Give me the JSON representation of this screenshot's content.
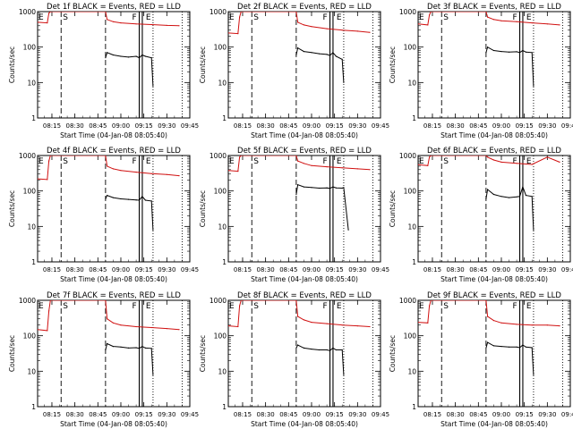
{
  "figure": {
    "colors": {
      "events": "#000000",
      "lld": "#d01010",
      "axes": "#000000",
      "background": "#ffffff"
    },
    "shared": {
      "title_suffix": "BLACK = Events, RED = LLD",
      "xlabel": "Start Time (04-Jan-08 08:05:40)",
      "ylabel": "Counts/sec",
      "xticks": [
        "08:15",
        "08:30",
        "08:45",
        "09:00",
        "09:15",
        "09:30",
        "09:45"
      ],
      "yticks": [
        "1",
        "10",
        "100",
        "1000"
      ],
      "marker_labels": [
        "E",
        "S",
        "F",
        "E"
      ]
    }
  },
  "chart_data": [
    {
      "type": "line",
      "title": "Det 1f BLACK = Events, RED = LLD",
      "xlabel": "Start Time (04-Jan-08 08:05:40)",
      "ylabel": "Counts/sec",
      "xlim": [
        "08:05:40",
        "09:45"
      ],
      "ylim": [
        1,
        1000
      ],
      "yscale": "log",
      "markers": {
        "E_start": "08:05:40",
        "S_dashed": "08:21",
        "dash_2": "08:50",
        "F_1": "09:12",
        "F_2": "09:14",
        "E_dotted": "09:21",
        "dotted_2": "09:40"
      },
      "series": [
        {
          "color": "red",
          "x": [
            "08:05:40",
            "08:12",
            "08:13",
            "08:14",
            "08:50",
            "08:51",
            "08:55",
            "09:00",
            "09:10",
            "09:20",
            "09:30",
            "09:38"
          ],
          "y": [
            500,
            480,
            900,
            1000,
            1000,
            600,
            520,
            480,
            450,
            430,
            410,
            400
          ]
        },
        {
          "color": "black",
          "x": [
            "08:50",
            "08:51",
            "08:55",
            "09:00",
            "09:05",
            "09:10",
            "09:12",
            "09:14",
            "09:16",
            "09:20",
            "09:21"
          ],
          "y": [
            50,
            70,
            60,
            55,
            52,
            55,
            50,
            60,
            55,
            50,
            8
          ]
        }
      ]
    },
    {
      "type": "line",
      "title": "Det 2f BLACK = Events, RED = LLD",
      "xlabel": "Start Time (04-Jan-08 08:05:40)",
      "ylabel": "Counts/sec",
      "xlim": [
        "08:05:40",
        "09:45"
      ],
      "ylim": [
        1,
        1000
      ],
      "yscale": "log",
      "markers": {
        "E_start": "08:05:40",
        "S_dashed": "08:21",
        "dash_2": "08:50",
        "F_1": "09:12",
        "F_2": "09:14",
        "E_dotted": "09:21",
        "dotted_2": "09:40"
      },
      "series": [
        {
          "color": "red",
          "x": [
            "08:05:40",
            "08:12",
            "08:13",
            "08:14",
            "08:50",
            "08:51",
            "08:55",
            "09:00",
            "09:10",
            "09:20",
            "09:30",
            "09:38"
          ],
          "y": [
            250,
            240,
            700,
            1000,
            1000,
            500,
            420,
            380,
            330,
            300,
            280,
            260
          ]
        },
        {
          "color": "black",
          "x": [
            "08:50",
            "08:51",
            "08:55",
            "09:00",
            "09:05",
            "09:10",
            "09:12",
            "09:14",
            "09:16",
            "09:20",
            "09:21"
          ],
          "y": [
            60,
            95,
            75,
            70,
            65,
            62,
            58,
            70,
            55,
            45,
            10
          ]
        }
      ]
    },
    {
      "type": "line",
      "title": "Det 3f BLACK = Events, RED = LLD",
      "xlabel": "Start Time (04-Jan-08 08:05:40)",
      "ylabel": "Counts/sec",
      "xlim": [
        "08:05:40",
        "09:45"
      ],
      "ylim": [
        1,
        1000
      ],
      "yscale": "log",
      "markers": {
        "E_start": "08:05:40",
        "S_dashed": "08:21",
        "dash_2": "08:50",
        "F_1": "09:12",
        "F_2": "09:14",
        "E_dotted": "09:21",
        "dotted_2": "09:40"
      },
      "series": [
        {
          "color": "red",
          "x": [
            "08:05:40",
            "08:12",
            "08:13",
            "08:14",
            "08:50",
            "08:51",
            "08:55",
            "09:00",
            "09:10",
            "09:20",
            "09:30",
            "09:38"
          ],
          "y": [
            450,
            420,
            800,
            1000,
            1000,
            700,
            600,
            550,
            520,
            480,
            450,
            420
          ]
        },
        {
          "color": "black",
          "x": [
            "08:50",
            "08:51",
            "08:55",
            "09:00",
            "09:05",
            "09:10",
            "09:12",
            "09:14",
            "09:16",
            "09:20",
            "09:21"
          ],
          "y": [
            70,
            100,
            80,
            75,
            72,
            74,
            70,
            80,
            72,
            70,
            8
          ]
        }
      ]
    },
    {
      "type": "line",
      "title": "Det 4f BLACK = Events, RED = LLD",
      "xlabel": "Start Time (04-Jan-08 08:05:40)",
      "ylabel": "Counts/sec",
      "xlim": [
        "08:05:40",
        "09:45"
      ],
      "ylim": [
        1,
        1000
      ],
      "yscale": "log",
      "markers": {
        "E_start": "08:05:40",
        "S_dashed": "08:21",
        "dash_2": "08:50",
        "F_1": "09:12",
        "F_2": "09:14",
        "E_dotted": "09:21",
        "dotted_2": "09:40"
      },
      "series": [
        {
          "color": "red",
          "x": [
            "08:05:40",
            "08:12",
            "08:13",
            "08:14",
            "08:50",
            "08:51",
            "08:55",
            "09:00",
            "09:10",
            "09:20",
            "09:30",
            "09:38"
          ],
          "y": [
            220,
            210,
            700,
            1000,
            1000,
            500,
            420,
            380,
            340,
            310,
            290,
            270
          ]
        },
        {
          "color": "black",
          "x": [
            "08:50",
            "08:51",
            "08:55",
            "09:00",
            "09:05",
            "09:10",
            "09:12",
            "09:14",
            "09:16",
            "09:20",
            "09:21"
          ],
          "y": [
            60,
            75,
            65,
            60,
            58,
            56,
            55,
            70,
            55,
            52,
            8
          ]
        }
      ]
    },
    {
      "type": "line",
      "title": "Det 5f BLACK = Events, RED = LLD",
      "xlabel": "Start Time (04-Jan-08 08:05:40)",
      "ylabel": "Counts/sec",
      "xlim": [
        "08:05:40",
        "09:45"
      ],
      "ylim": [
        1,
        1000
      ],
      "yscale": "log",
      "markers": {
        "E_start": "08:05:40",
        "S_dashed": "08:21",
        "dash_2": "08:50",
        "F_1": "09:12",
        "F_2": "09:14",
        "E_dotted": "09:21",
        "dotted_2": "09:40"
      },
      "series": [
        {
          "color": "red",
          "x": [
            "08:05:40",
            "08:12",
            "08:13",
            "08:14",
            "08:50",
            "08:51",
            "08:55",
            "09:00",
            "09:10",
            "09:20",
            "09:30",
            "09:38"
          ],
          "y": [
            380,
            360,
            900,
            1000,
            1000,
            700,
            600,
            520,
            480,
            450,
            420,
            400
          ]
        },
        {
          "color": "black",
          "x": [
            "08:50",
            "08:51",
            "08:55",
            "09:00",
            "09:05",
            "09:10",
            "09:12",
            "09:14",
            "09:16",
            "09:20",
            "09:21",
            "09:24"
          ],
          "y": [
            80,
            150,
            130,
            125,
            120,
            122,
            118,
            130,
            122,
            120,
            125,
            8
          ]
        }
      ]
    },
    {
      "type": "line",
      "title": "Det 6f BLACK = Events, RED = LLD",
      "xlabel": "Start Time (04-Jan-08 08:05:40)",
      "ylabel": "Counts/sec",
      "xlim": [
        "08:05:40",
        "09:45"
      ],
      "ylim": [
        1,
        1000
      ],
      "yscale": "log",
      "markers": {
        "E_start": "08:05:40",
        "S_dashed": "08:21",
        "dash_2": "08:50",
        "F_1": "09:12",
        "F_2": "09:14",
        "E_dotted": "09:21",
        "dotted_2": "09:40"
      },
      "series": [
        {
          "color": "red",
          "x": [
            "08:05:40",
            "08:12",
            "08:13",
            "08:14",
            "08:50",
            "08:51",
            "08:55",
            "09:00",
            "09:10",
            "09:20",
            "09:30",
            "09:38"
          ],
          "y": [
            550,
            520,
            900,
            1000,
            1000,
            900,
            750,
            650,
            600,
            560,
            900,
            650
          ]
        },
        {
          "color": "black",
          "x": [
            "08:50",
            "08:51",
            "08:55",
            "09:00",
            "09:05",
            "09:10",
            "09:12",
            "09:14",
            "09:16",
            "09:20",
            "09:21"
          ],
          "y": [
            60,
            110,
            80,
            70,
            65,
            68,
            70,
            130,
            75,
            70,
            8
          ]
        }
      ]
    },
    {
      "type": "line",
      "title": "Det 7f BLACK = Events, RED = LLD",
      "xlabel": "Start Time (04-Jan-08 08:05:40)",
      "ylabel": "Counts/sec",
      "xlim": [
        "08:05:40",
        "09:45"
      ],
      "ylim": [
        1,
        1000
      ],
      "yscale": "log",
      "markers": {
        "E_start": "08:05:40",
        "S_dashed": "08:21",
        "dash_2": "08:50",
        "F_1": "09:12",
        "F_2": "09:14",
        "E_dotted": "09:21",
        "dotted_2": "09:40"
      },
      "series": [
        {
          "color": "red",
          "x": [
            "08:05:40",
            "08:12",
            "08:13",
            "08:14",
            "08:50",
            "08:51",
            "08:55",
            "09:00",
            "09:10",
            "09:20",
            "09:30",
            "09:38"
          ],
          "y": [
            150,
            140,
            500,
            1000,
            1000,
            300,
            230,
            200,
            180,
            170,
            160,
            150
          ]
        },
        {
          "color": "black",
          "x": [
            "08:50",
            "08:51",
            "08:55",
            "09:00",
            "09:05",
            "09:10",
            "09:12",
            "09:14",
            "09:16",
            "09:20",
            "09:21"
          ],
          "y": [
            40,
            60,
            50,
            48,
            45,
            46,
            44,
            50,
            45,
            44,
            8
          ]
        }
      ]
    },
    {
      "type": "line",
      "title": "Det 8f BLACK = Events, RED = LLD",
      "xlabel": "Start Time (04-Jan-08 08:05:40)",
      "ylabel": "Counts/sec",
      "xlim": [
        "08:05:40",
        "09:45"
      ],
      "ylim": [
        1,
        1000
      ],
      "yscale": "log",
      "markers": {
        "E_start": "08:05:40",
        "S_dashed": "08:21",
        "dash_2": "08:50",
        "F_1": "09:12",
        "F_2": "09:14",
        "E_dotted": "09:21",
        "dotted_2": "09:40"
      },
      "series": [
        {
          "color": "red",
          "x": [
            "08:05:40",
            "08:12",
            "08:13",
            "08:14",
            "08:50",
            "08:51",
            "08:55",
            "09:00",
            "09:10",
            "09:20",
            "09:30",
            "09:38"
          ],
          "y": [
            190,
            180,
            700,
            1000,
            1000,
            350,
            280,
            240,
            220,
            200,
            190,
            180
          ]
        },
        {
          "color": "black",
          "x": [
            "08:50",
            "08:51",
            "08:55",
            "09:00",
            "09:05",
            "09:10",
            "09:12",
            "09:14",
            "09:16",
            "09:20",
            "09:21"
          ],
          "y": [
            45,
            55,
            45,
            42,
            40,
            40,
            38,
            45,
            40,
            40,
            8
          ]
        }
      ]
    },
    {
      "type": "line",
      "title": "Det 9f BLACK = Events, RED = LLD",
      "xlabel": "Start Time (04-Jan-08 08:05:40)",
      "ylabel": "Counts/sec",
      "xlim": [
        "08:05:40",
        "09:45"
      ],
      "ylim": [
        1,
        1000
      ],
      "yscale": "log",
      "markers": {
        "E_start": "08:05:40",
        "S_dashed": "08:21",
        "dash_2": "08:50",
        "F_1": "09:12",
        "F_2": "09:14",
        "E_dotted": "09:21",
        "dotted_2": "09:40"
      },
      "series": [
        {
          "color": "red",
          "x": [
            "08:05:40",
            "08:12",
            "08:13",
            "08:14",
            "08:50",
            "08:51",
            "08:55",
            "09:00",
            "09:10",
            "09:20",
            "09:30",
            "09:38"
          ],
          "y": [
            240,
            230,
            700,
            1000,
            1000,
            350,
            270,
            230,
            210,
            200,
            200,
            190
          ]
        },
        {
          "color": "black",
          "x": [
            "08:50",
            "08:51",
            "08:55",
            "09:00",
            "09:05",
            "09:10",
            "09:12",
            "09:14",
            "09:16",
            "09:20",
            "09:21"
          ],
          "y": [
            45,
            65,
            52,
            50,
            48,
            48,
            46,
            55,
            48,
            46,
            8
          ]
        }
      ]
    }
  ]
}
